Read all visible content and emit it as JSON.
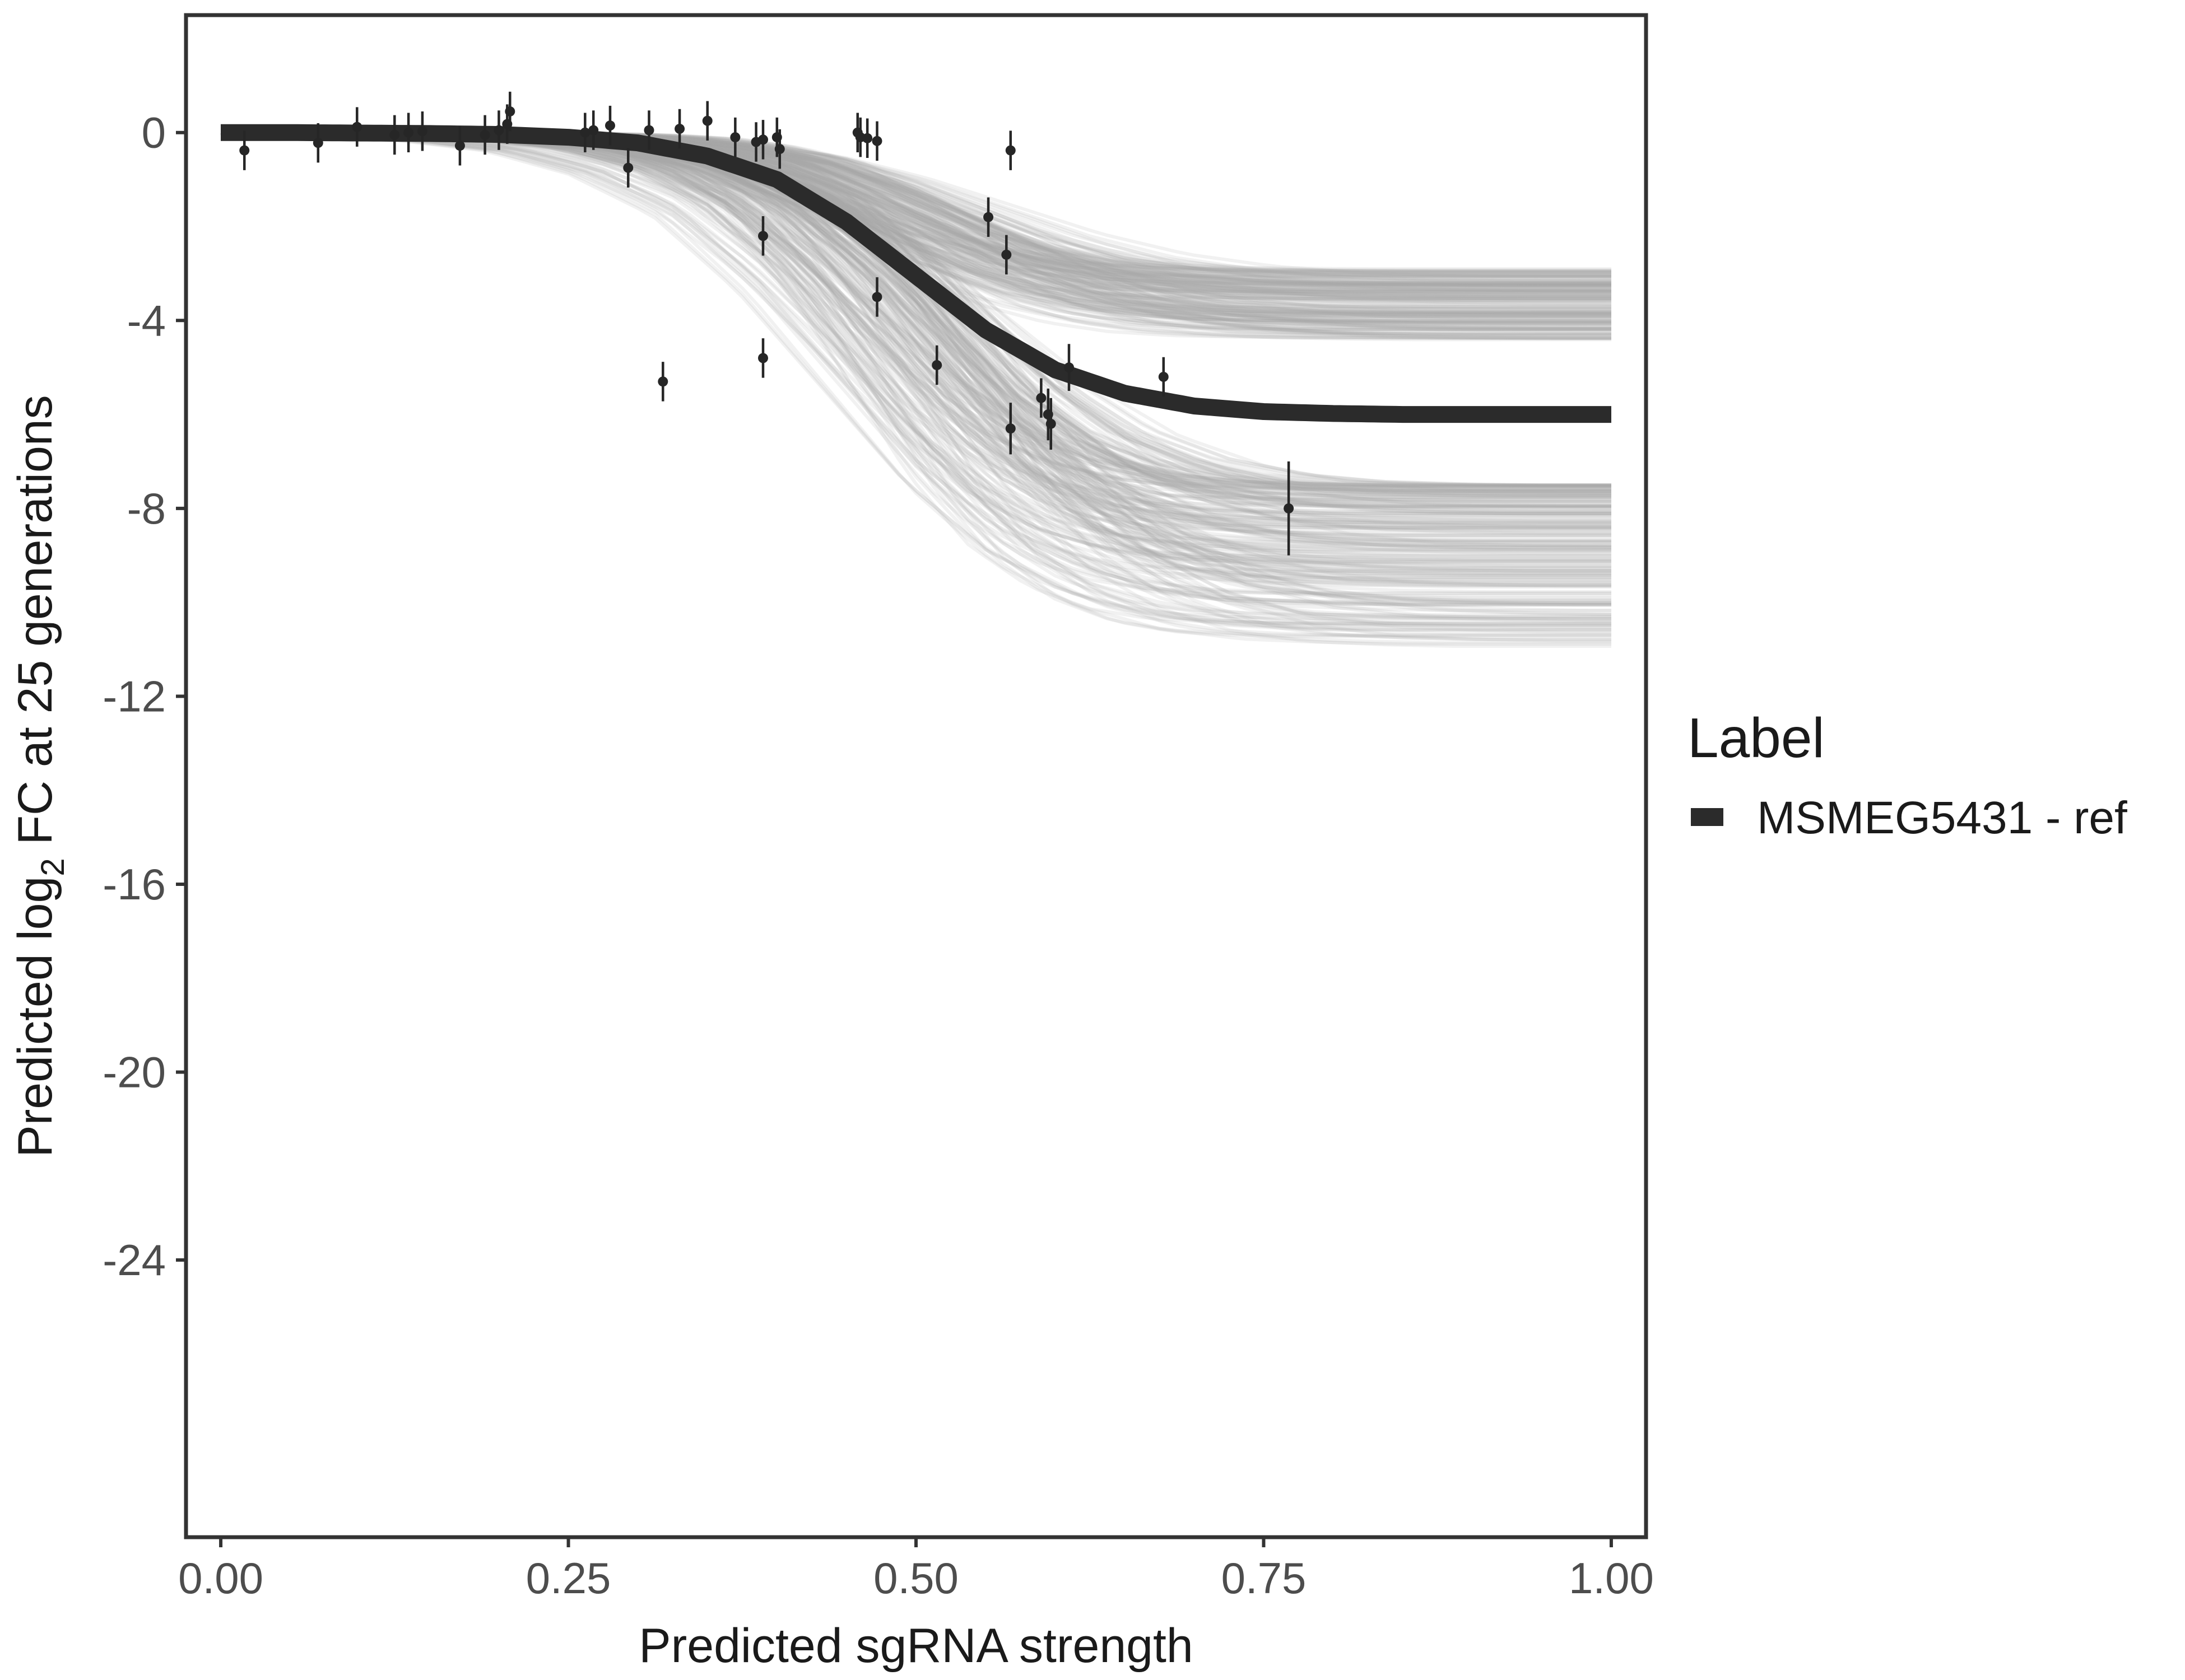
{
  "chart_data": {
    "type": "line",
    "xlabel": "Predicted sgRNA strength",
    "ylabel": {
      "prefix": "Predicted  log",
      "subscript": "2",
      "suffix": " FC at 25 generations"
    },
    "xlim": [
      -0.025,
      1.025
    ],
    "ylim": [
      -29.9,
      2.5
    ],
    "x_ticks": [
      0,
      0.25,
      0.5,
      0.75,
      1.0
    ],
    "x_tick_labels": [
      "0.00",
      "0.25",
      "0.50",
      "0.75",
      "1.00"
    ],
    "y_ticks": [
      0,
      -4,
      -8,
      -12,
      -16,
      -20,
      -24
    ],
    "y_tick_labels": [
      "0",
      "-4",
      "-8",
      "-12",
      "-16",
      "-20",
      "-24"
    ],
    "grid": false,
    "legend": {
      "title": "Label",
      "position": "right",
      "entries": [
        {
          "label": "MSMEG5431 - ref",
          "color": "#2b2b2b"
        }
      ]
    },
    "colors": {
      "fit_line": "#2b2b2b",
      "posterior_draws": "#a9a9a9",
      "points": "#262626",
      "panel_border": "#333333"
    },
    "fit_curve": {
      "name": "MSMEG5431 - ref",
      "x": [
        0.0,
        0.05,
        0.1,
        0.15,
        0.2,
        0.25,
        0.3,
        0.35,
        0.4,
        0.45,
        0.5,
        0.55,
        0.6,
        0.65,
        0.7,
        0.75,
        0.8,
        0.85,
        0.9,
        0.95,
        1.0
      ],
      "y": [
        0.0,
        0.0,
        -0.01,
        -0.02,
        -0.04,
        -0.1,
        -0.22,
        -0.5,
        -1.0,
        -1.9,
        -3.05,
        -4.2,
        -5.05,
        -5.55,
        -5.82,
        -5.94,
        -5.98,
        -6.0,
        -6.0,
        -6.0,
        -6.0
      ]
    },
    "posterior_band": {
      "draws": 400,
      "upper_asymptote_range": [
        -2.9,
        -4.6
      ],
      "lower_asymptote_range": [
        -7.5,
        -11.0
      ]
    },
    "observations": [
      {
        "x": 0.017,
        "y": -0.38,
        "err": 0.42
      },
      {
        "x": 0.07,
        "y": -0.22,
        "err": 0.42
      },
      {
        "x": 0.098,
        "y": 0.12,
        "err": 0.42
      },
      {
        "x": 0.125,
        "y": -0.05,
        "err": 0.42
      },
      {
        "x": 0.135,
        "y": 0.0,
        "err": 0.42
      },
      {
        "x": 0.145,
        "y": 0.03,
        "err": 0.42
      },
      {
        "x": 0.172,
        "y": -0.28,
        "err": 0.42
      },
      {
        "x": 0.19,
        "y": -0.05,
        "err": 0.42
      },
      {
        "x": 0.2,
        "y": 0.05,
        "err": 0.42
      },
      {
        "x": 0.206,
        "y": 0.18,
        "err": 0.42
      },
      {
        "x": 0.208,
        "y": 0.45,
        "err": 0.42
      },
      {
        "x": 0.262,
        "y": 0.0,
        "err": 0.42
      },
      {
        "x": 0.268,
        "y": 0.05,
        "err": 0.42
      },
      {
        "x": 0.28,
        "y": 0.15,
        "err": 0.42
      },
      {
        "x": 0.293,
        "y": -0.75,
        "err": 0.42
      },
      {
        "x": 0.308,
        "y": 0.05,
        "err": 0.42
      },
      {
        "x": 0.318,
        "y": -5.3,
        "err": 0.42
      },
      {
        "x": 0.33,
        "y": 0.08,
        "err": 0.42
      },
      {
        "x": 0.35,
        "y": 0.25,
        "err": 0.42
      },
      {
        "x": 0.37,
        "y": -0.1,
        "err": 0.42
      },
      {
        "x": 0.385,
        "y": -0.2,
        "err": 0.42
      },
      {
        "x": 0.39,
        "y": -0.15,
        "err": 0.42
      },
      {
        "x": 0.39,
        "y": -2.2,
        "err": 0.42
      },
      {
        "x": 0.39,
        "y": -4.8,
        "err": 0.42
      },
      {
        "x": 0.4,
        "y": -0.1,
        "err": 0.42
      },
      {
        "x": 0.402,
        "y": -0.35,
        "err": 0.42
      },
      {
        "x": 0.458,
        "y": 0.0,
        "err": 0.42
      },
      {
        "x": 0.46,
        "y": -0.1,
        "err": 0.42
      },
      {
        "x": 0.465,
        "y": -0.12,
        "err": 0.42
      },
      {
        "x": 0.472,
        "y": -0.18,
        "err": 0.42
      },
      {
        "x": 0.472,
        "y": -3.5,
        "err": 0.42
      },
      {
        "x": 0.515,
        "y": -4.95,
        "err": 0.42
      },
      {
        "x": 0.552,
        "y": -1.8,
        "err": 0.42
      },
      {
        "x": 0.565,
        "y": -2.6,
        "err": 0.42
      },
      {
        "x": 0.568,
        "y": -0.38,
        "err": 0.42
      },
      {
        "x": 0.568,
        "y": -6.3,
        "err": 0.55
      },
      {
        "x": 0.59,
        "y": -5.65,
        "err": 0.42
      },
      {
        "x": 0.595,
        "y": -6.0,
        "err": 0.55
      },
      {
        "x": 0.597,
        "y": -6.2,
        "err": 0.55
      },
      {
        "x": 0.61,
        "y": -5.0,
        "err": 0.5
      },
      {
        "x": 0.678,
        "y": -5.2,
        "err": 0.42
      },
      {
        "x": 0.768,
        "y": -8.0,
        "err": 1.0
      }
    ]
  }
}
